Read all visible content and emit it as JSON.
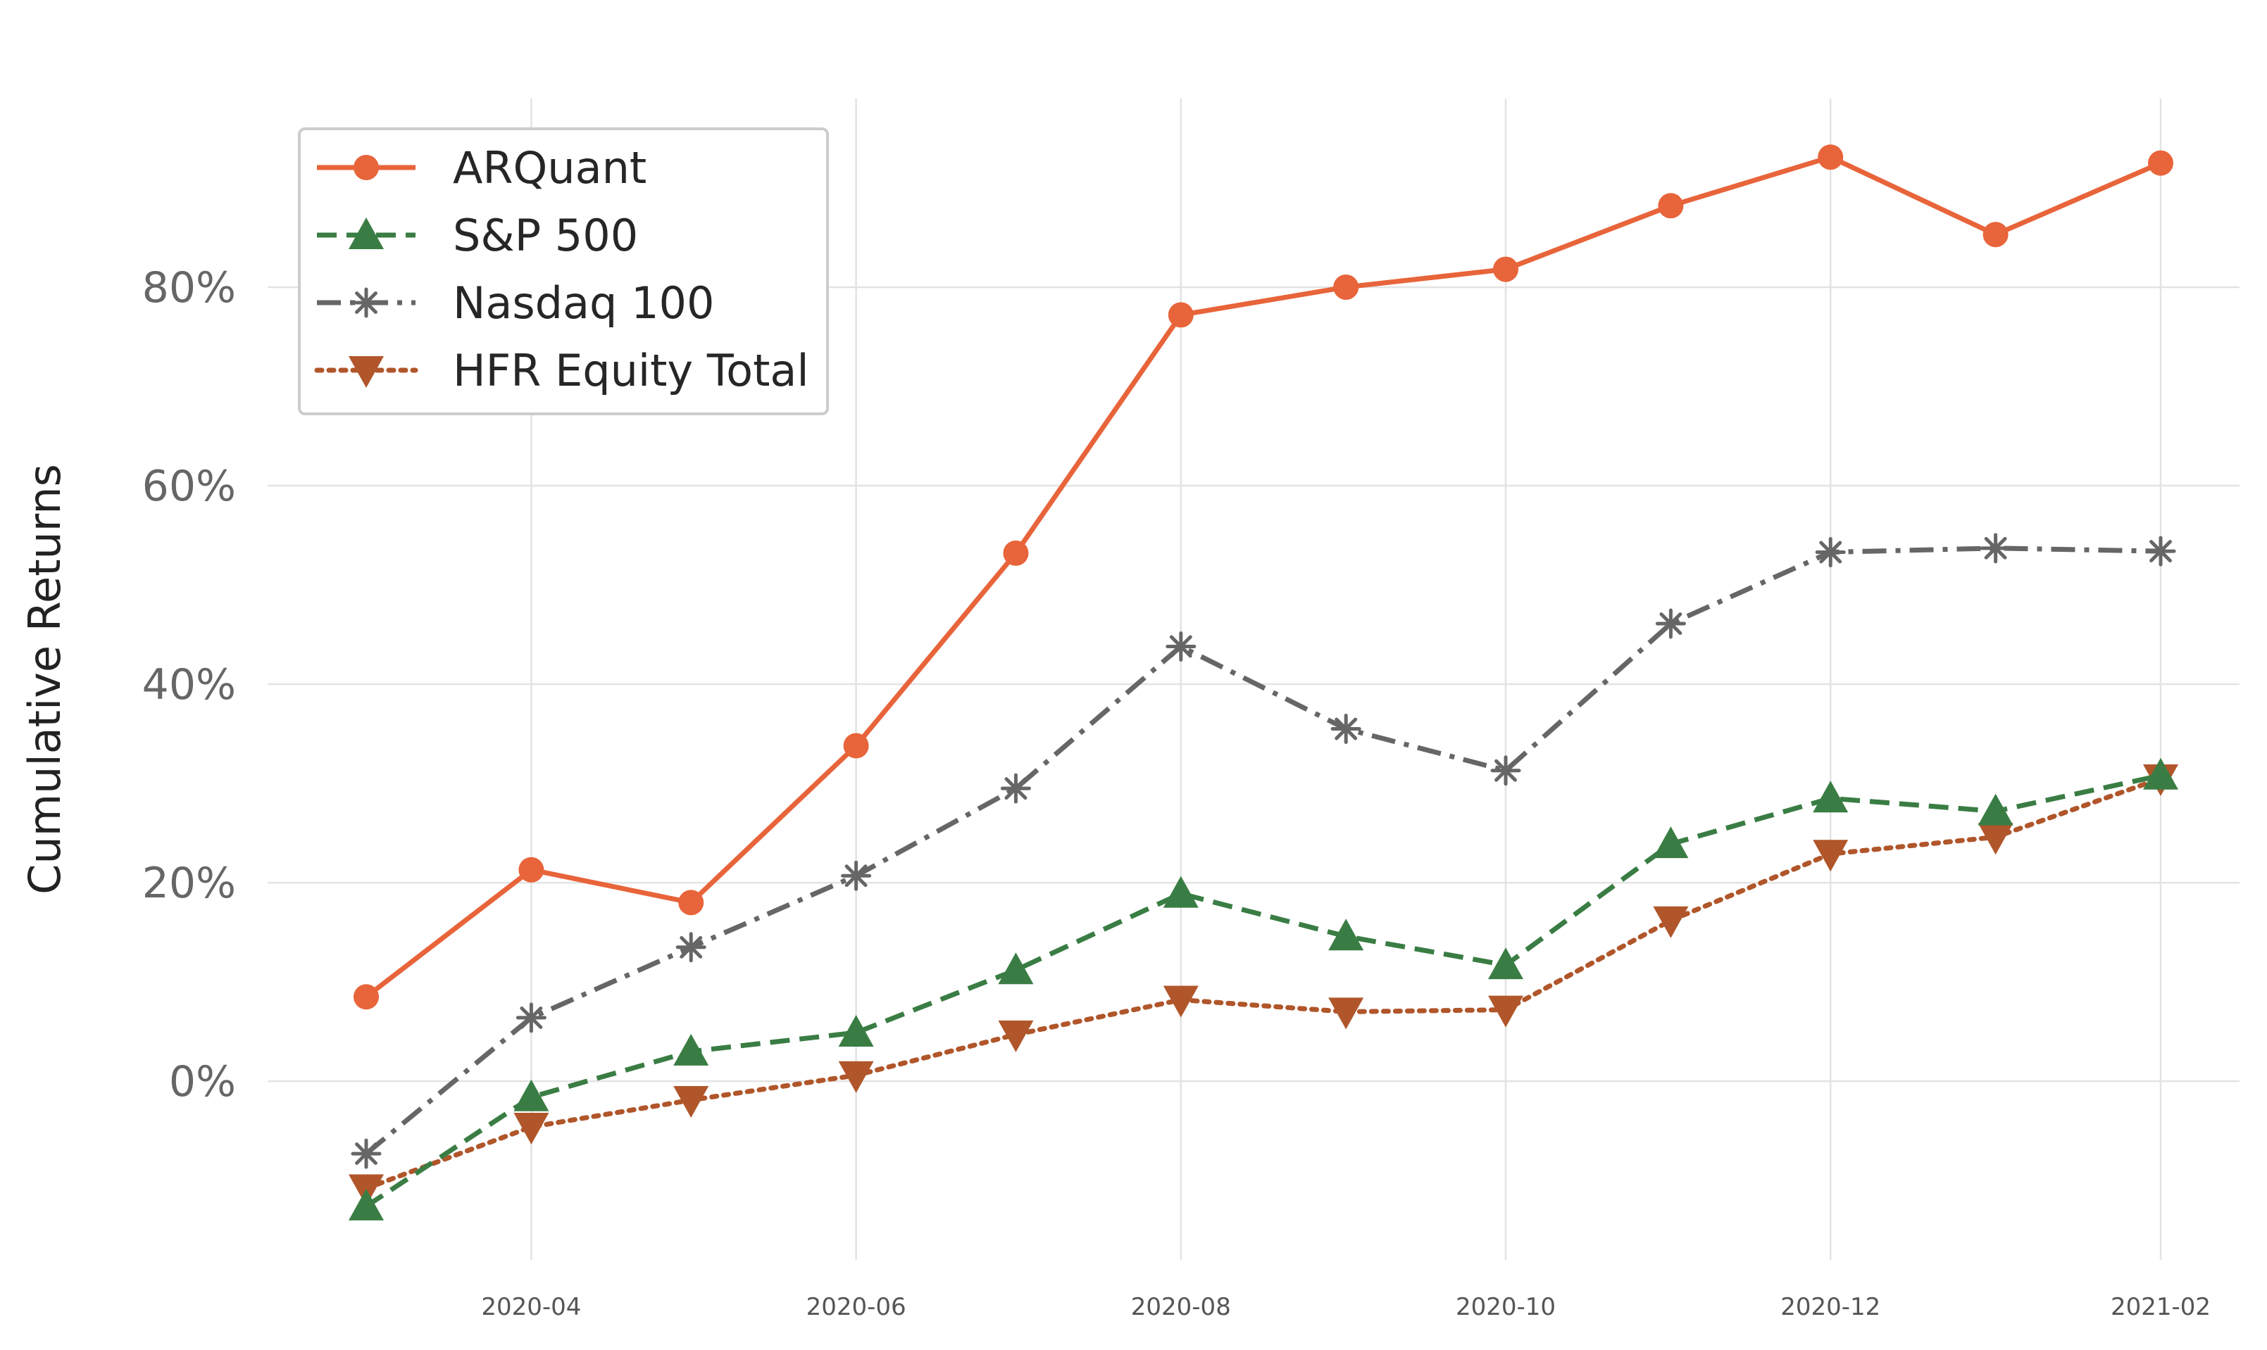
{
  "chart_data": {
    "type": "line",
    "title": "",
    "xlabel": "",
    "ylabel": "Cumulative Returns",
    "x": [
      "2020-03-01",
      "2020-04-01",
      "2020-05-01",
      "2020-06-01",
      "2020-07-01",
      "2020-08-01",
      "2020-09-01",
      "2020-10-01",
      "2020-11-01",
      "2020-12-01",
      "2021-01-01",
      "2021-02-01"
    ],
    "x_ticks": [
      "2020-04",
      "2020-06",
      "2020-08",
      "2020-10",
      "2020-12",
      "2021-02"
    ],
    "y_ticks": [
      "0%",
      "20%",
      "40%",
      "60%",
      "80%"
    ],
    "y_tick_values": [
      0,
      20,
      40,
      60,
      80
    ],
    "ylim": [
      -18,
      99
    ],
    "grid": true,
    "legend_placement": "top-left",
    "series": [
      {
        "name": "ARQuant",
        "color": "#e8643a",
        "linestyle": "solid",
        "marker": "circle",
        "values": [
          8.5,
          21.3,
          18.0,
          33.8,
          53.2,
          77.2,
          80.0,
          81.8,
          88.2,
          93.1,
          85.3,
          92.5
        ]
      },
      {
        "name": "S&P 500",
        "color": "#3a7d44",
        "linestyle": "dashed",
        "marker": "triangle-up",
        "values": [
          -12.6,
          -1.6,
          3.0,
          4.9,
          11.2,
          18.9,
          14.6,
          11.7,
          23.9,
          28.5,
          27.2,
          30.8
        ]
      },
      {
        "name": "Nasdaq 100",
        "color": "#666666",
        "linestyle": "dashdot",
        "marker": "asterisk",
        "values": [
          -7.3,
          6.4,
          13.5,
          20.7,
          29.5,
          43.8,
          35.5,
          31.3,
          46.1,
          53.3,
          53.7,
          53.4
        ]
      },
      {
        "name": "HFR Equity Total",
        "color": "#b0562a",
        "linestyle": "dotted",
        "marker": "triangle-down",
        "values": [
          -10.8,
          -4.6,
          -1.9,
          0.6,
          4.7,
          8.2,
          7.0,
          7.2,
          16.2,
          22.9,
          24.6,
          30.5
        ]
      }
    ]
  }
}
